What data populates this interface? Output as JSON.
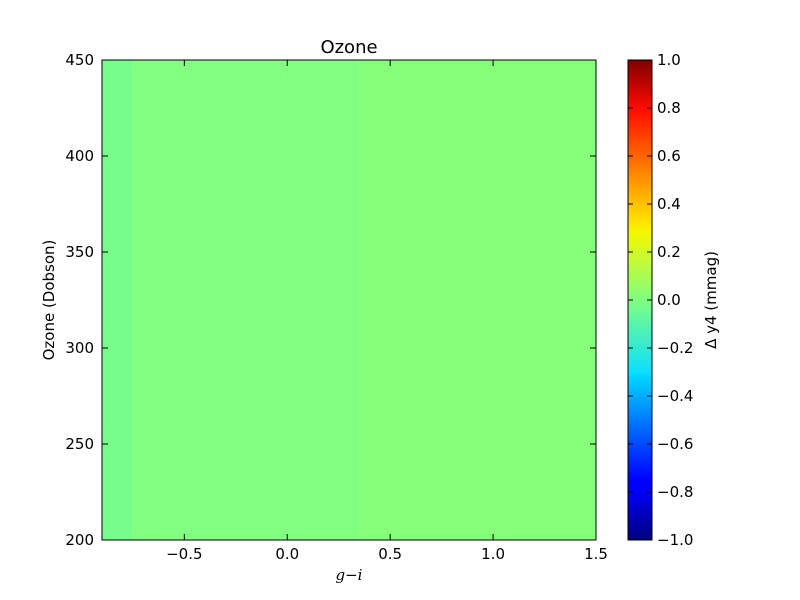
{
  "chart_data": {
    "type": "heatmap",
    "title": "Ozone",
    "xlabel": "g−i",
    "ylabel": "Ozone (Dobson)",
    "xlim": [
      -0.9,
      1.5
    ],
    "ylim": [
      200,
      450
    ],
    "x_ticks": [
      -0.5,
      0.0,
      0.5,
      1.0,
      1.5
    ],
    "x_tick_labels": [
      "−0.5",
      "0.0",
      "0.5",
      "1.0",
      "1.5"
    ],
    "y_ticks": [
      200,
      250,
      300,
      350,
      400,
      450
    ],
    "y_tick_labels": [
      "200",
      "250",
      "300",
      "350",
      "400",
      "450"
    ],
    "colorbar": {
      "label": "Δ y4 (mmag)",
      "colormap": "jet",
      "range": [
        -1.0,
        1.0
      ],
      "ticks": [
        1.0,
        0.8,
        0.6,
        0.4,
        0.2,
        0.0,
        -0.2,
        -0.4,
        -0.6,
        -0.8,
        -1.0
      ],
      "tick_labels": [
        "1.0",
        "0.8",
        "0.6",
        "0.4",
        "0.2",
        "0.0",
        "−0.2",
        "−0.4",
        "−0.6",
        "−0.8",
        "−1.0"
      ]
    },
    "cells": [
      {
        "x_range": [
          -0.9,
          -0.75
        ],
        "value": -0.02
      },
      {
        "x_range": [
          -0.75,
          0.35
        ],
        "value": 0.0
      },
      {
        "x_range": [
          0.35,
          1.5
        ],
        "value": 0.01
      }
    ],
    "grid": false
  }
}
